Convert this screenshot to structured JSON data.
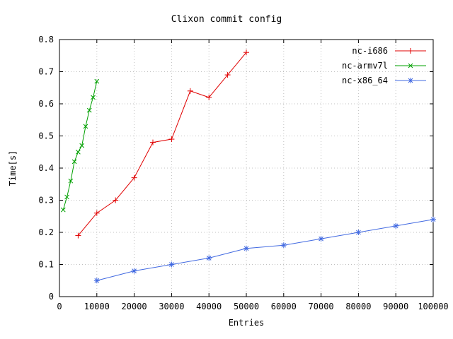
{
  "chart_data": {
    "type": "line",
    "title": "Clixon commit config",
    "xlabel": "Entries",
    "ylabel": "Time[s]",
    "xlim": [
      0,
      100000
    ],
    "ylim": [
      0,
      0.8
    ],
    "grid": true,
    "legend_position": "top-right-inside",
    "x_ticks": [
      0,
      10000,
      20000,
      30000,
      40000,
      50000,
      60000,
      70000,
      80000,
      90000,
      100000
    ],
    "x_tick_labels": [
      "0",
      "10000",
      "20000",
      "30000",
      "40000",
      "50000",
      "60000",
      "70000",
      "80000",
      "90000",
      "100000"
    ],
    "y_ticks": [
      0,
      0.1,
      0.2,
      0.3,
      0.4,
      0.5,
      0.6,
      0.7,
      0.8
    ],
    "y_tick_labels": [
      "0",
      "0.1",
      "0.2",
      "0.3",
      "0.4",
      "0.5",
      "0.6",
      "0.7",
      "0.8"
    ],
    "grid_color": "#c0c0c0",
    "axis_color": "#000000",
    "series": [
      {
        "name": "nc-i686",
        "color": "#e00000",
        "marker": "plus",
        "x": [
          5000,
          10000,
          15000,
          20000,
          25000,
          30000,
          35000,
          40000,
          45000,
          50000
        ],
        "y": [
          0.19,
          0.26,
          0.3,
          0.37,
          0.48,
          0.49,
          0.64,
          0.62,
          0.69,
          0.76
        ]
      },
      {
        "name": "nc-armv7l",
        "color": "#00a000",
        "marker": "cross",
        "x": [
          1000,
          2000,
          3000,
          4000,
          5000,
          6000,
          7000,
          8000,
          9000,
          10000
        ],
        "y": [
          0.27,
          0.31,
          0.36,
          0.42,
          0.45,
          0.47,
          0.53,
          0.58,
          0.62,
          0.67
        ]
      },
      {
        "name": "nc-x86_64",
        "color": "#4169e1",
        "marker": "asterisk",
        "x": [
          10000,
          20000,
          30000,
          40000,
          50000,
          60000,
          70000,
          80000,
          90000,
          100000
        ],
        "y": [
          0.05,
          0.08,
          0.1,
          0.12,
          0.15,
          0.16,
          0.18,
          0.2,
          0.22,
          0.24
        ]
      }
    ]
  }
}
